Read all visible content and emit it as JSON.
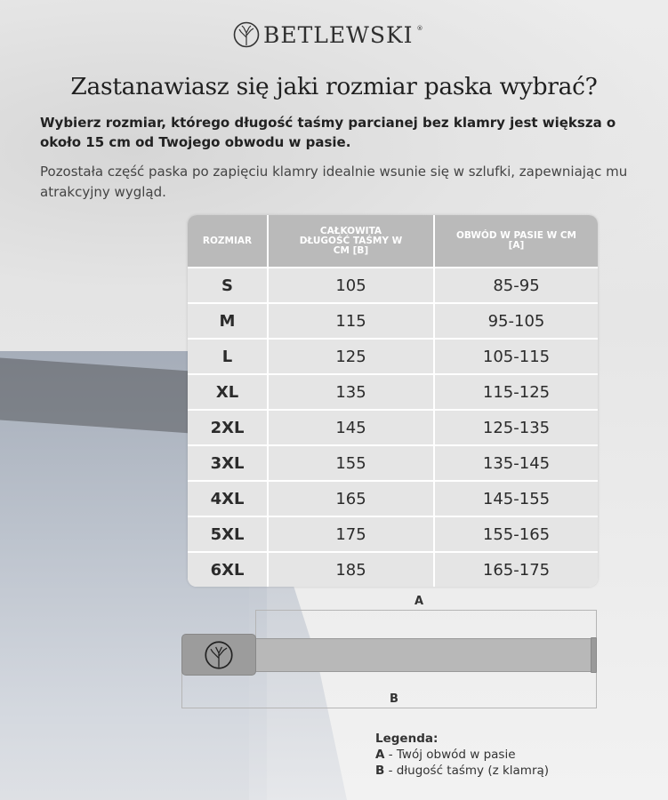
{
  "brand": {
    "name": "BETLEWSKI",
    "registered": "®"
  },
  "title": "Zastanawiasz się jaki rozmiar paska wybrać?",
  "lead": "Wybierz rozmiar, którego długość taśmy parcianej bez klamry jest większa o około 15 cm od Twojego obwodu w pasie.",
  "subtext": "Pozostała część paska po zapięciu klamry idealnie wsunie się w szlufki, zapewniając mu atrakcyjny wygląd.",
  "table": {
    "headers": [
      "ROZMIAR",
      "CAŁKOWITA DŁUGOŚĆ TAŚMY W CM [B]",
      "OBWÓD W PASIE W CM [A]"
    ],
    "rows": [
      [
        "S",
        "105",
        "85-95"
      ],
      [
        "M",
        "115",
        "95-105"
      ],
      [
        "L",
        "125",
        "105-115"
      ],
      [
        "XL",
        "135",
        "115-125"
      ],
      [
        "2XL",
        "145",
        "125-135"
      ],
      [
        "3XL",
        "155",
        "135-145"
      ],
      [
        "4XL",
        "165",
        "145-155"
      ],
      [
        "5XL",
        "175",
        "155-165"
      ],
      [
        "6XL",
        "185",
        "165-175"
      ]
    ]
  },
  "diagram": {
    "label_a": "A",
    "label_b": "B"
  },
  "legend": {
    "title": "Legenda:",
    "a_key": "A",
    "a_text": " - Twój obwód w pasie",
    "b_key": "B",
    "b_text": " - długość taśmy (z klamrą)"
  }
}
